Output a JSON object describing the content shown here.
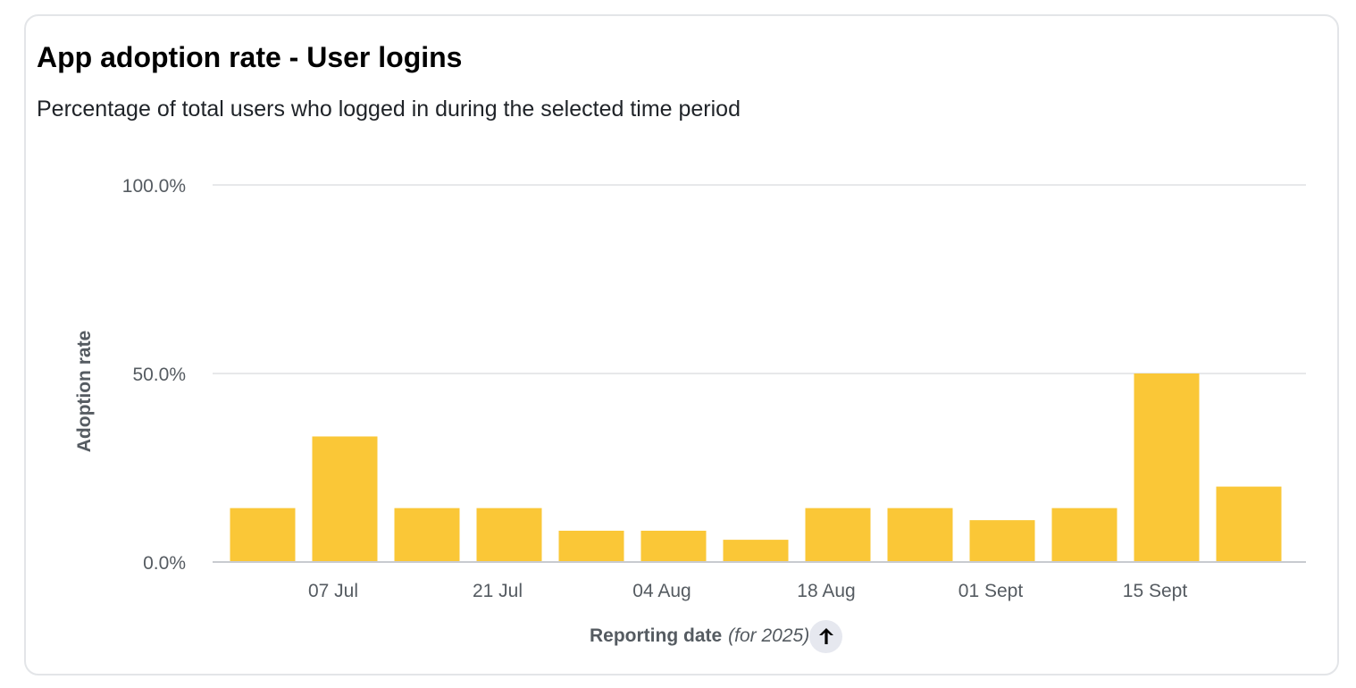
{
  "card": {
    "title": "App adoption rate - User logins",
    "subtitle": "Percentage of total users who logged in during the selected time period"
  },
  "chart_data": {
    "type": "bar",
    "title": "App adoption rate - User logins",
    "subtitle": "Percentage of total users who logged in during the selected time period",
    "ylabel": "Adoption rate",
    "xlabel": "Reporting date",
    "xlabel_note": "(for 2025)",
    "x": [
      "2025-06-30",
      "2025-07-07",
      "2025-07-14",
      "2025-07-21",
      "2025-07-28",
      "2025-08-04",
      "2025-08-11",
      "2025-08-18",
      "2025-08-25",
      "2025-09-01",
      "2025-09-08",
      "2025-09-15",
      "2025-09-22"
    ],
    "values": [
      14.3,
      33.3,
      14.3,
      14.3,
      8.3,
      8.3,
      5.9,
      14.3,
      14.3,
      11.1,
      14.3,
      50.0,
      20.0
    ],
    "ylim": [
      0,
      100
    ],
    "yticks": [
      0,
      50,
      100
    ],
    "ytick_labels": [
      "0.0%",
      "50.0%",
      "100.0%"
    ],
    "xtick_labels": [
      {
        "at": "2025-07-07",
        "label": "07 Jul"
      },
      {
        "at": "2025-07-21",
        "label": "21 Jul"
      },
      {
        "at": "2025-08-04",
        "label": "04 Aug"
      },
      {
        "at": "2025-08-18",
        "label": "18 Aug"
      },
      {
        "at": "2025-09-01",
        "label": "01 Sept"
      },
      {
        "at": "2025-09-15",
        "label": "15 Sept"
      }
    ],
    "grid": true,
    "legend": "none",
    "bar_color": "#fac737",
    "sort": "ascending"
  },
  "icons": {
    "sort": "arrow-up-icon"
  }
}
